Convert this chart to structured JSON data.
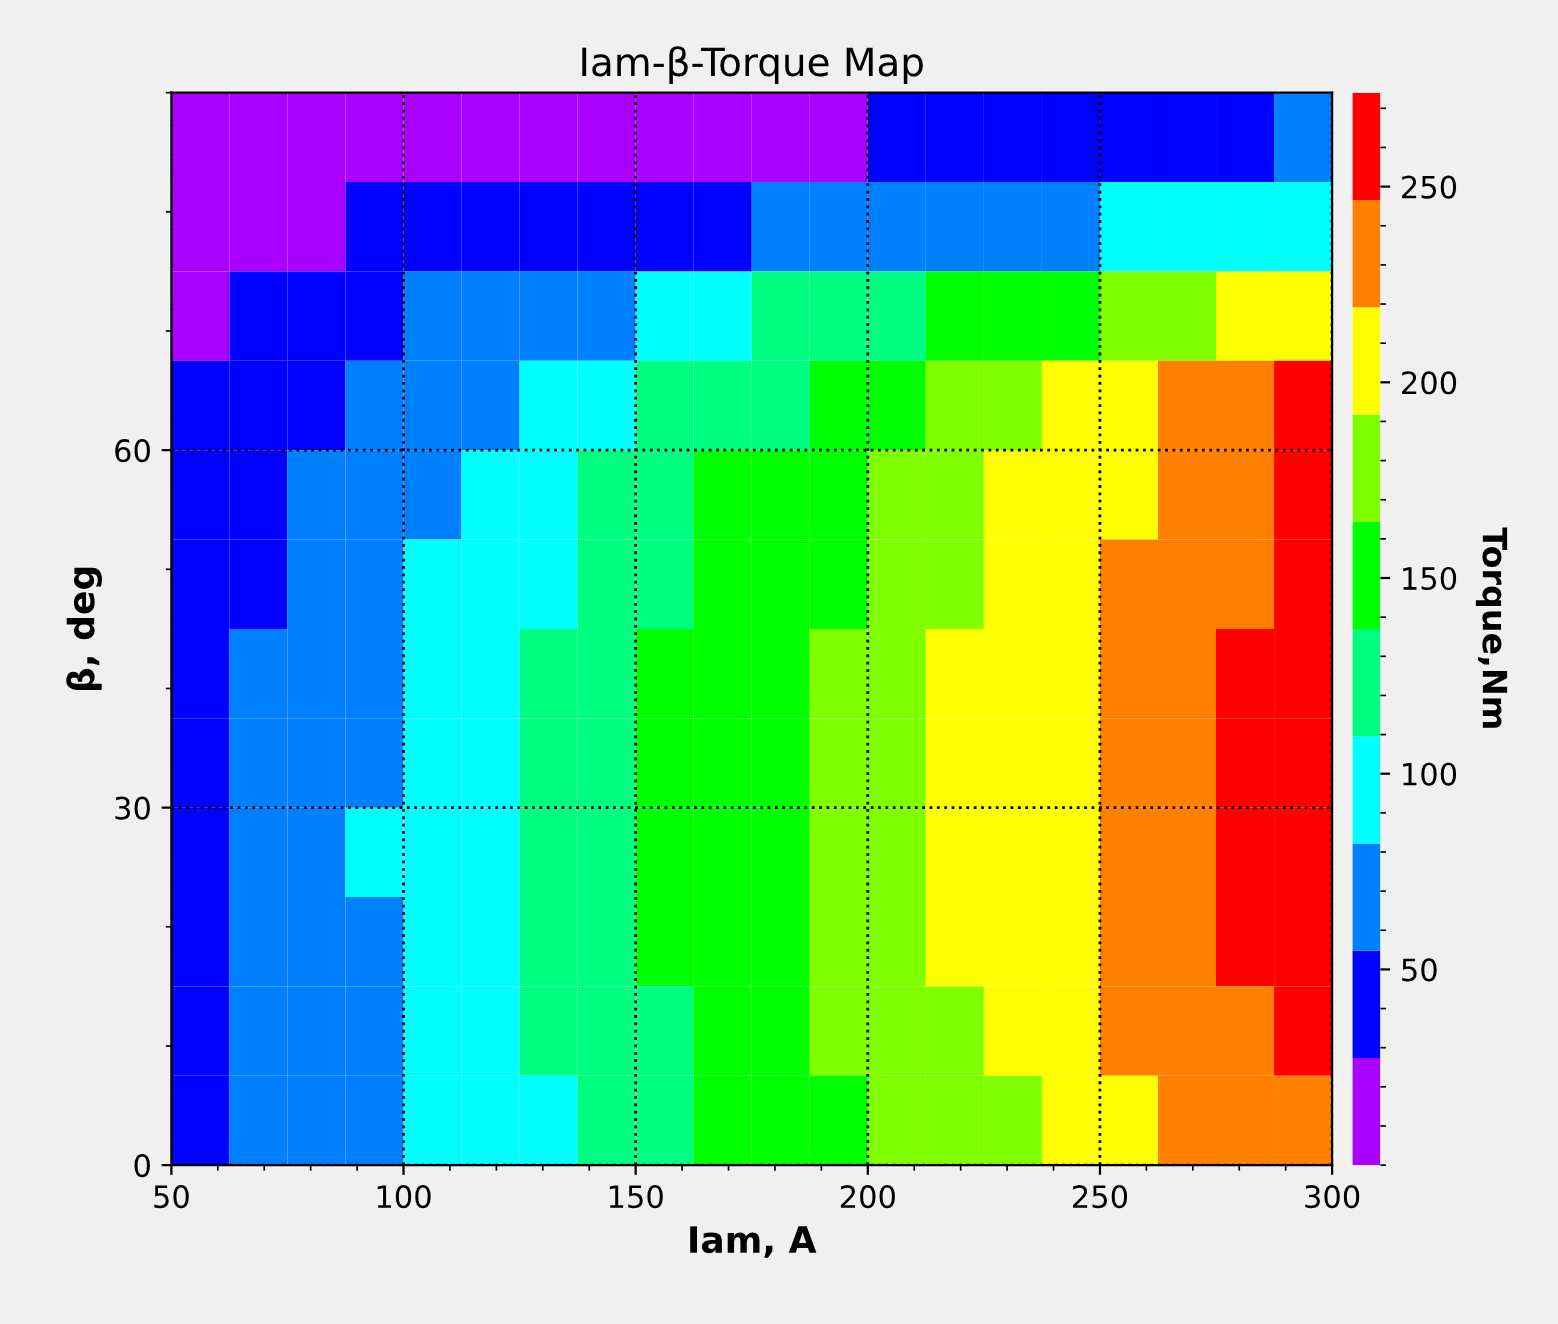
{
  "chart_data": {
    "type": "heatmap",
    "title": "Iam-β-Torque Map",
    "xlabel": "Iam, A",
    "ylabel": "β, deg",
    "clabel": "Torque,Nm",
    "cells": [
      [
        8,
        9,
        11,
        13,
        15,
        16,
        18,
        20,
        21,
        23,
        25,
        27,
        29,
        33,
        37,
        40,
        44,
        48,
        52,
        55
      ],
      [
        10,
        19,
        24,
        28,
        32,
        36,
        41,
        45,
        50,
        54,
        58,
        62,
        66,
        70,
        74,
        78,
        83,
        91,
        100,
        108
      ],
      [
        26,
        35,
        42,
        50,
        58,
        65,
        73,
        81,
        91,
        102,
        112,
        122,
        131,
        140,
        150,
        160,
        170,
        181,
        193,
        205
      ],
      [
        30,
        40,
        49,
        59,
        69,
        79,
        89,
        100,
        111,
        122,
        134,
        146,
        159,
        171,
        183,
        196,
        209,
        222,
        234,
        247
      ],
      [
        33,
        44,
        56,
        66,
        78,
        89,
        100,
        111,
        125,
        139,
        150,
        160,
        173,
        184,
        196,
        206,
        219,
        230,
        242,
        253
      ],
      [
        41,
        52,
        63,
        74,
        86,
        97,
        108,
        119,
        131,
        142,
        153,
        164,
        176,
        187,
        198,
        209,
        221,
        232,
        243,
        254
      ],
      [
        46,
        57,
        69,
        80,
        92,
        104,
        115,
        127,
        138,
        150,
        161,
        173,
        185,
        196,
        208,
        219,
        231,
        242,
        254,
        265
      ],
      [
        48,
        60,
        71,
        82,
        93,
        105,
        116,
        127,
        138,
        150,
        161,
        172,
        183,
        194,
        206,
        217,
        228,
        239,
        251,
        262
      ],
      [
        48,
        60,
        71,
        83,
        94,
        105,
        116,
        128,
        139,
        150,
        161,
        173,
        184,
        195,
        206,
        218,
        229,
        240,
        251,
        262
      ],
      [
        48,
        60,
        71,
        82,
        93,
        105,
        116,
        127,
        138,
        150,
        161,
        172,
        183,
        194,
        206,
        217,
        228,
        239,
        251,
        262
      ],
      [
        46,
        57,
        68,
        79,
        90,
        101,
        112,
        123,
        134,
        145,
        156,
        166,
        177,
        188,
        199,
        210,
        221,
        232,
        243,
        254
      ],
      [
        45,
        55,
        66,
        76,
        87,
        97,
        108,
        118,
        128,
        139,
        149,
        160,
        170,
        180,
        191,
        201,
        212,
        222,
        232,
        243
      ]
    ],
    "colors": [
      "#aa00ff",
      "#0000ff",
      "#0080ff",
      "#00ffff",
      "#00ff80",
      "#00ff00",
      "#80ff00",
      "#ffff00",
      "#ff8000",
      "#ff0000"
    ],
    "xlim": [
      50,
      300
    ],
    "xticks": [
      50,
      100,
      150,
      200,
      250,
      300
    ],
    "ylim": [
      0,
      90
    ],
    "yticks": [
      0,
      30,
      60
    ],
    "clim": [
      0,
      274
    ],
    "cticks": [
      50,
      100,
      150,
      200,
      250
    ],
    "grid": true
  }
}
